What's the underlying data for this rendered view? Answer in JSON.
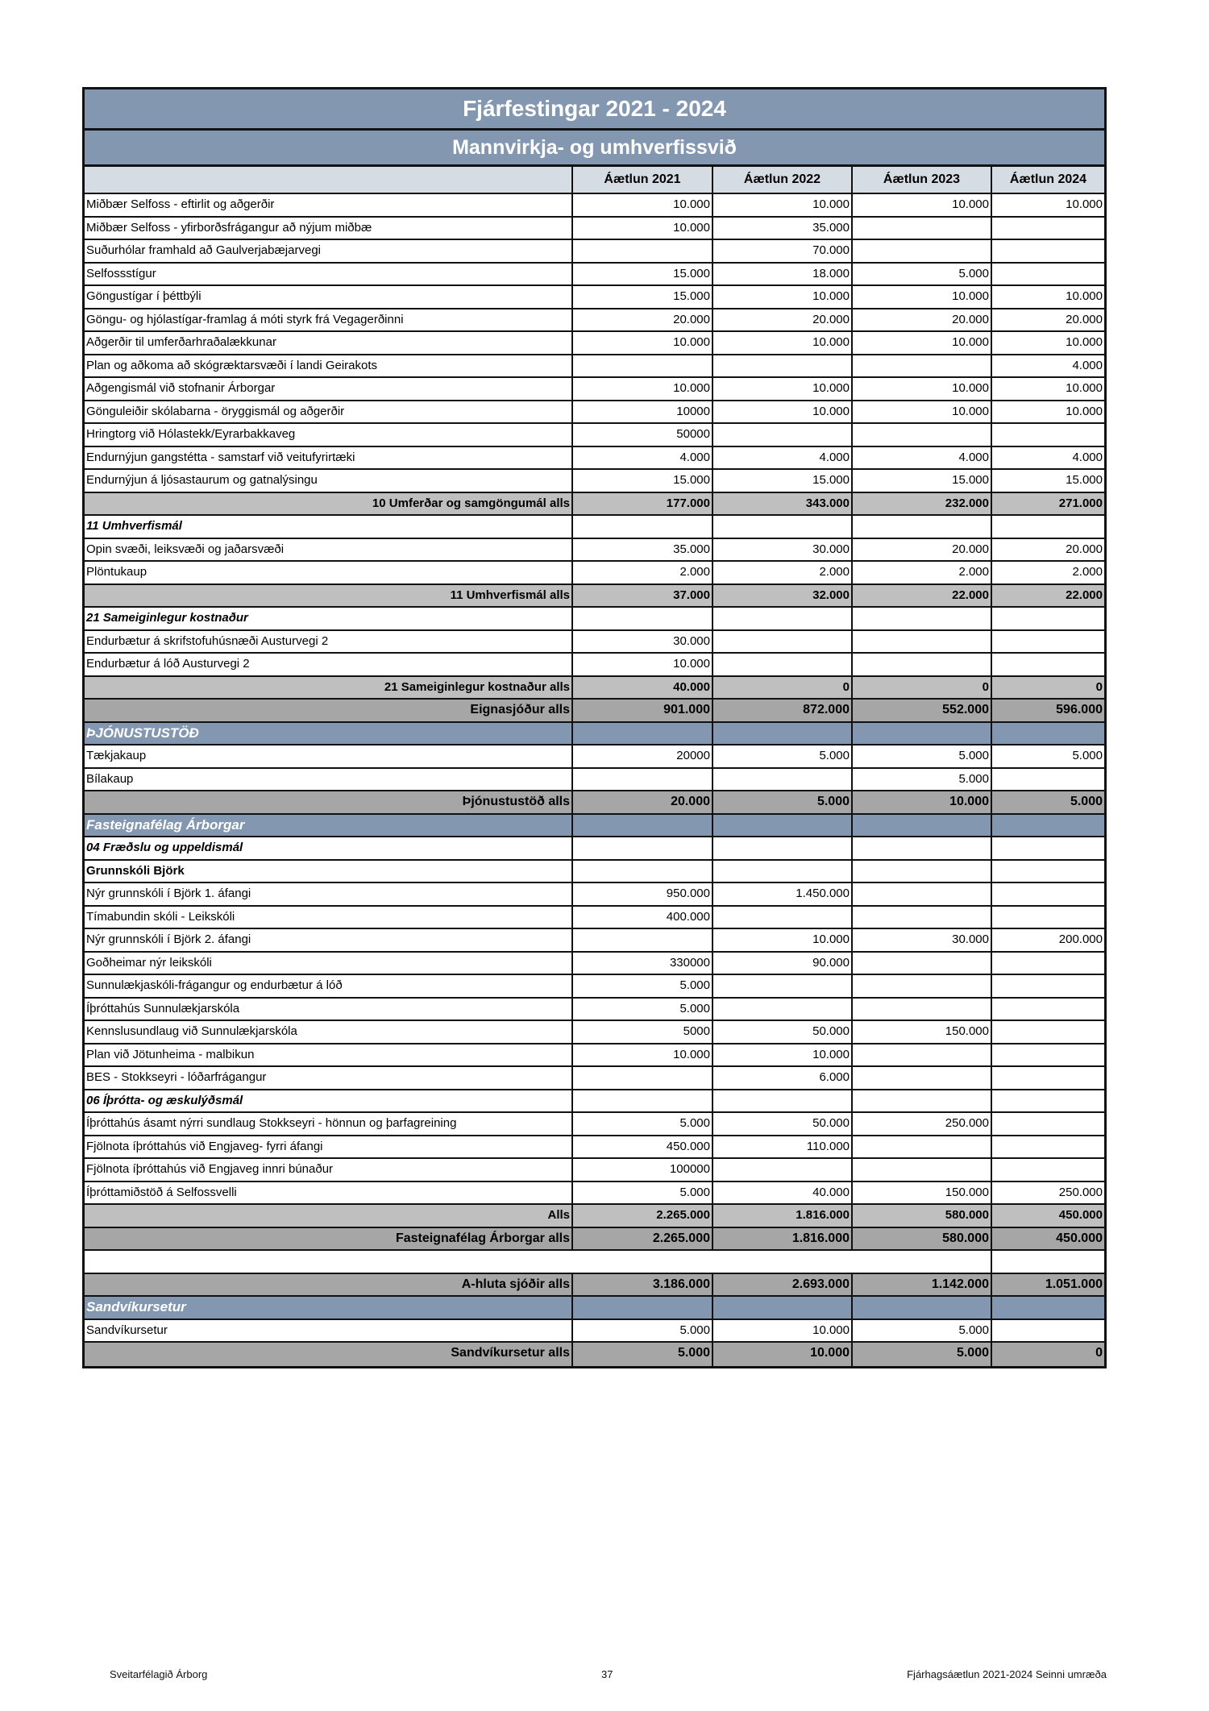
{
  "title": "Fjárfestingar 2021 - 2024",
  "subtitle": "Mannvirkja- og umhverfissvið",
  "columns": [
    "",
    "Áætlun 2021",
    "Áætlun 2022",
    "Áætlun 2023",
    "Áætlun 2024"
  ],
  "rows": [
    {
      "type": "item",
      "label": "Miðbær Selfoss - eftirlit og aðgerðir",
      "values": [
        "10.000",
        "10.000",
        "10.000",
        "10.000"
      ]
    },
    {
      "type": "item",
      "label": "Miðbær Selfoss - yfirborðsfrágangur að nýjum miðbæ",
      "values": [
        "10.000",
        "35.000",
        "",
        ""
      ]
    },
    {
      "type": "item",
      "label": "Suðurhólar framhald að Gaulverjabæjarvegi",
      "values": [
        "",
        "70.000",
        "",
        ""
      ]
    },
    {
      "type": "item",
      "label": "Selfossstígur",
      "values": [
        "15.000",
        "18.000",
        "5.000",
        ""
      ]
    },
    {
      "type": "item",
      "label": "Göngustígar í þéttbýli",
      "values": [
        "15.000",
        "10.000",
        "10.000",
        "10.000"
      ]
    },
    {
      "type": "item",
      "label": "Göngu- og hjólastígar-framlag á móti styrk frá Vegagerðinni",
      "values": [
        "20.000",
        "20.000",
        "20.000",
        "20.000"
      ]
    },
    {
      "type": "item",
      "label": "Aðgerðir til umferðarhraðalækkunar",
      "values": [
        "10.000",
        "10.000",
        "10.000",
        "10.000"
      ]
    },
    {
      "type": "item",
      "label": "Plan og aðkoma að skógræktarsvæði í landi Geirakots",
      "values": [
        "",
        "",
        "",
        "4.000"
      ]
    },
    {
      "type": "item",
      "label": "Aðgengismál við stofnanir Árborgar",
      "values": [
        "10.000",
        "10.000",
        "10.000",
        "10.000"
      ]
    },
    {
      "type": "item",
      "label": "Gönguleiðir skólabarna - öryggismál og aðgerðir",
      "values": [
        "10000",
        "10.000",
        "10.000",
        "10.000"
      ]
    },
    {
      "type": "item",
      "label": "Hringtorg við Hólastekk/Eyrarbakkaveg",
      "values": [
        "50000",
        "",
        "",
        ""
      ]
    },
    {
      "type": "item",
      "label": "Endurnýjun gangstétta - samstarf við veitufyrirtæki",
      "values": [
        "4.000",
        "4.000",
        "4.000",
        "4.000"
      ]
    },
    {
      "type": "item",
      "label": "Endurnýjun á ljósastaurum og gatnalýsingu",
      "values": [
        "15.000",
        "15.000",
        "15.000",
        "15.000"
      ]
    },
    {
      "type": "total",
      "label": "10 Umferðar og samgöngumál alls",
      "values": [
        "177.000",
        "343.000",
        "232.000",
        "271.000"
      ]
    },
    {
      "type": "sub",
      "label": "11 Umhverfismál",
      "values": [
        "",
        "",
        "",
        ""
      ]
    },
    {
      "type": "item",
      "label": "Opin svæði, leiksvæði og jaðarsvæði",
      "values": [
        "35.000",
        "30.000",
        "20.000",
        "20.000"
      ]
    },
    {
      "type": "item",
      "label": "Plöntukaup",
      "values": [
        "2.000",
        "2.000",
        "2.000",
        "2.000"
      ]
    },
    {
      "type": "total",
      "label": "11 Umhverfismál alls",
      "values": [
        "37.000",
        "32.000",
        "22.000",
        "22.000"
      ]
    },
    {
      "type": "sub",
      "label": "21 Sameiginlegur kostnaður",
      "values": [
        "",
        "",
        "",
        ""
      ]
    },
    {
      "type": "item",
      "label": "Endurbætur á skrifstofuhúsnæði Austurvegi 2",
      "values": [
        "30.000",
        "",
        "",
        ""
      ]
    },
    {
      "type": "item",
      "label": "Endurbætur á lóð Austurvegi 2",
      "values": [
        "10.000",
        "",
        "",
        ""
      ]
    },
    {
      "type": "total",
      "label": "21 Sameiginlegur kostnaður alls",
      "values": [
        "40.000",
        "0",
        "0",
        "0"
      ]
    },
    {
      "type": "grand",
      "label": "Eignasjóður alls",
      "values": [
        "901.000",
        "872.000",
        "552.000",
        "596.000"
      ]
    },
    {
      "type": "section",
      "label": "ÞJÓNUSTUSTÖÐ",
      "values": [
        "",
        "",
        "",
        ""
      ]
    },
    {
      "type": "item",
      "label": "Tækjakaup",
      "values": [
        "20000",
        "5.000",
        "5.000",
        "5.000"
      ]
    },
    {
      "type": "item",
      "label": "Bílakaup",
      "values": [
        "",
        "",
        "5.000",
        ""
      ]
    },
    {
      "type": "grand",
      "label": "Þjónustustöð alls",
      "values": [
        "20.000",
        "5.000",
        "10.000",
        "5.000"
      ]
    },
    {
      "type": "section",
      "label": "Fasteignafélag Árborgar",
      "values": [
        "",
        "",
        "",
        ""
      ]
    },
    {
      "type": "sub",
      "label": "04 Fræðslu og uppeldismál",
      "values": [
        "",
        "",
        "",
        ""
      ]
    },
    {
      "type": "boldlbl",
      "label": "Grunnskóli Björk",
      "values": [
        "",
        "",
        "",
        ""
      ]
    },
    {
      "type": "item",
      "label": "Nýr grunnskóli í Björk 1. áfangi",
      "values": [
        "950.000",
        "1.450.000",
        "",
        ""
      ]
    },
    {
      "type": "item",
      "label": "Tímabundin skóli - Leikskóli",
      "values": [
        "400.000",
        "",
        "",
        ""
      ]
    },
    {
      "type": "item",
      "label": "Nýr grunnskóli í Björk 2. áfangi",
      "values": [
        "",
        "10.000",
        "30.000",
        "200.000"
      ]
    },
    {
      "type": "item",
      "label": "Goðheimar nýr leikskóli",
      "values": [
        "330000",
        "90.000",
        "",
        ""
      ]
    },
    {
      "type": "item",
      "label": "Sunnulækjaskóli-frágangur og endurbætur á lóð",
      "values": [
        "5.000",
        "",
        "",
        ""
      ]
    },
    {
      "type": "item",
      "label": "Íþróttahús Sunnulækjarskóla",
      "values": [
        "5.000",
        "",
        "",
        ""
      ]
    },
    {
      "type": "item",
      "label": "Kennslusundlaug við Sunnulækjarskóla",
      "values": [
        "5000",
        "50.000",
        "150.000",
        ""
      ]
    },
    {
      "type": "item",
      "label": "Plan við Jötunheima - malbikun",
      "values": [
        "10.000",
        "10.000",
        "",
        ""
      ]
    },
    {
      "type": "item",
      "label": "BES - Stokkseyri - lóðarfrágangur",
      "values": [
        "",
        "6.000",
        "",
        ""
      ]
    },
    {
      "type": "sub",
      "label": "06 Íþrótta- og æskulýðsmál",
      "values": [
        "",
        "",
        "",
        ""
      ]
    },
    {
      "type": "item",
      "label": "Íþróttahús ásamt nýrri sundlaug Stokkseyri - hönnun og þarfagreining",
      "values": [
        "5.000",
        "50.000",
        "250.000",
        ""
      ]
    },
    {
      "type": "item",
      "label": "Fjölnota íþróttahús við Engjaveg- fyrri áfangi",
      "values": [
        "450.000",
        "110.000",
        "",
        ""
      ]
    },
    {
      "type": "item",
      "label": "Fjölnota íþróttahús við Engjaveg innri búnaður",
      "values": [
        "100000",
        "",
        "",
        ""
      ]
    },
    {
      "type": "item",
      "label": "Íþróttamiðstöð á Selfossvelli",
      "values": [
        "5.000",
        "40.000",
        "150.000",
        "250.000"
      ]
    },
    {
      "type": "total",
      "label": "Alls",
      "values": [
        "2.265.000",
        "1.816.000",
        "580.000",
        "450.000"
      ]
    },
    {
      "type": "grand",
      "label": "Fasteignafélag Árborgar alls",
      "values": [
        "2.265.000",
        "1.816.000",
        "580.000",
        "450.000"
      ]
    },
    {
      "type": "blank",
      "label": "",
      "values": [
        "",
        "",
        "",
        ""
      ]
    },
    {
      "type": "grand",
      "label": "A-hluta sjóðir alls",
      "values": [
        "3.186.000",
        "2.693.000",
        "1.142.000",
        "1.051.000"
      ]
    },
    {
      "type": "section",
      "label": "Sandvíkursetur",
      "values": [
        "",
        "",
        "",
        ""
      ]
    },
    {
      "type": "item",
      "label": "Sandvíkursetur",
      "values": [
        "5.000",
        "10.000",
        "5.000",
        ""
      ]
    },
    {
      "type": "grand",
      "label": "Sandvíkursetur alls",
      "values": [
        "5.000",
        "10.000",
        "5.000",
        "0"
      ]
    }
  ],
  "footer": {
    "left": "Sveitarfélagið Árborg",
    "page": "37",
    "right": "Fjárhagsáætlun 2021-2024 Seinni umræða"
  },
  "colors": {
    "header_blue": "#8497b0",
    "column_header": "#d6dce4",
    "subtotal": "#bfbfbf",
    "total": "#a6a6a6"
  }
}
